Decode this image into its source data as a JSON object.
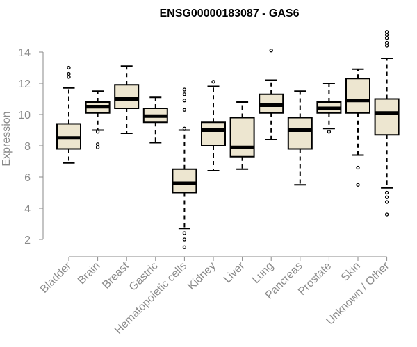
{
  "chart_data": {
    "type": "box",
    "title": "ENSG00000183087 - GAS6",
    "xlabel": "",
    "ylabel": "Expression",
    "ylim": [
      1.2,
      15.6
    ],
    "yticks": [
      2,
      4,
      6,
      8,
      10,
      12,
      14
    ],
    "categories": [
      "Bladder",
      "Brain",
      "Breast",
      "Gastric",
      "Hematopoietic cells",
      "Kidney",
      "Liver",
      "Lung",
      "Pancreas",
      "Prostate",
      "Skin",
      "Unknown / Other"
    ],
    "boxes": [
      {
        "category": "Bladder",
        "whisker_low": 6.9,
        "q1": 7.8,
        "median": 8.5,
        "q3": 9.4,
        "whisker_high": 11.7,
        "outliers": [
          12.4,
          12.6,
          13.0
        ]
      },
      {
        "category": "Brain",
        "whisker_low": 9.0,
        "q1": 10.1,
        "median": 10.5,
        "q3": 10.8,
        "whisker_high": 11.5,
        "outliers": [
          7.9,
          8.1,
          8.9
        ]
      },
      {
        "category": "Breast",
        "whisker_low": 8.8,
        "q1": 10.4,
        "median": 11.0,
        "q3": 11.9,
        "whisker_high": 13.1,
        "outliers": []
      },
      {
        "category": "Gastric",
        "whisker_low": 8.2,
        "q1": 9.5,
        "median": 9.9,
        "q3": 10.4,
        "whisker_high": 11.1,
        "outliers": []
      },
      {
        "category": "Hematopoietic cells",
        "whisker_low": 2.7,
        "q1": 5.0,
        "median": 5.6,
        "q3": 6.5,
        "whisker_high": 9.0,
        "outliers": [
          1.5,
          2.0,
          2.4,
          9.1,
          10.3,
          10.9,
          11.3,
          11.6
        ]
      },
      {
        "category": "Kidney",
        "whisker_low": 6.4,
        "q1": 8.0,
        "median": 9.0,
        "q3": 9.5,
        "whisker_high": 11.8,
        "outliers": [
          12.1
        ]
      },
      {
        "category": "Liver",
        "whisker_low": 6.5,
        "q1": 7.3,
        "median": 7.9,
        "q3": 9.8,
        "whisker_high": 10.8,
        "outliers": []
      },
      {
        "category": "Lung",
        "whisker_low": 8.4,
        "q1": 10.1,
        "median": 10.6,
        "q3": 11.3,
        "whisker_high": 12.2,
        "outliers": [
          14.1
        ]
      },
      {
        "category": "Pancreas",
        "whisker_low": 5.5,
        "q1": 7.8,
        "median": 9.0,
        "q3": 9.8,
        "whisker_high": 11.5,
        "outliers": []
      },
      {
        "category": "Prostate",
        "whisker_low": 9.1,
        "q1": 10.1,
        "median": 10.4,
        "q3": 10.8,
        "whisker_high": 12.0,
        "outliers": [
          8.9
        ]
      },
      {
        "category": "Skin",
        "whisker_low": 7.4,
        "q1": 10.1,
        "median": 10.9,
        "q3": 12.3,
        "whisker_high": 12.9,
        "outliers": [
          5.5,
          6.6
        ]
      },
      {
        "category": "Unknown / Other",
        "whisker_low": 5.3,
        "q1": 8.7,
        "median": 10.1,
        "q3": 11.0,
        "whisker_high": 13.6,
        "outliers": [
          3.6,
          4.4,
          4.7,
          5.0,
          14.4,
          14.6,
          14.9,
          15.1,
          15.3
        ]
      }
    ],
    "box_fill": "#ede6d0",
    "box_stroke": "#000000",
    "grid": false,
    "legend": "none"
  }
}
